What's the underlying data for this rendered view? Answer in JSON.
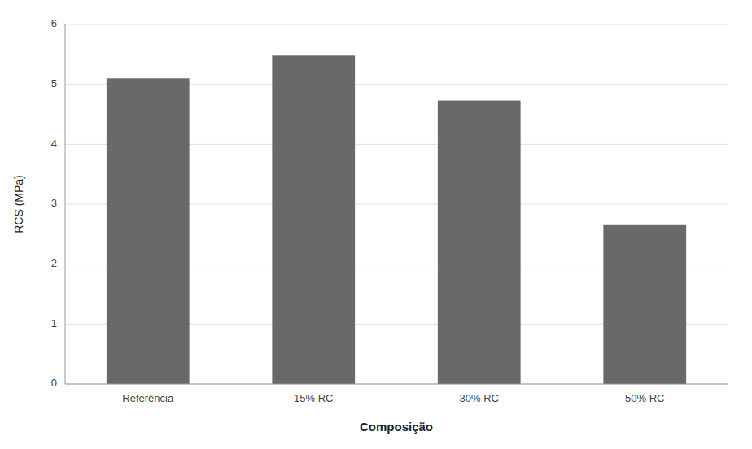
{
  "chart_data": {
    "type": "bar",
    "x_label": "Composição",
    "y_label": "RCS (MPa)",
    "categories": [
      "Referência",
      "15% RC",
      "30% RC",
      "50% RC"
    ],
    "values": [
      5.1,
      5.48,
      4.73,
      2.65
    ],
    "color": "#696969",
    "ylim": [
      0,
      6
    ],
    "yticks": [
      0,
      1,
      2,
      3,
      4,
      5,
      6
    ],
    "grid": true
  }
}
